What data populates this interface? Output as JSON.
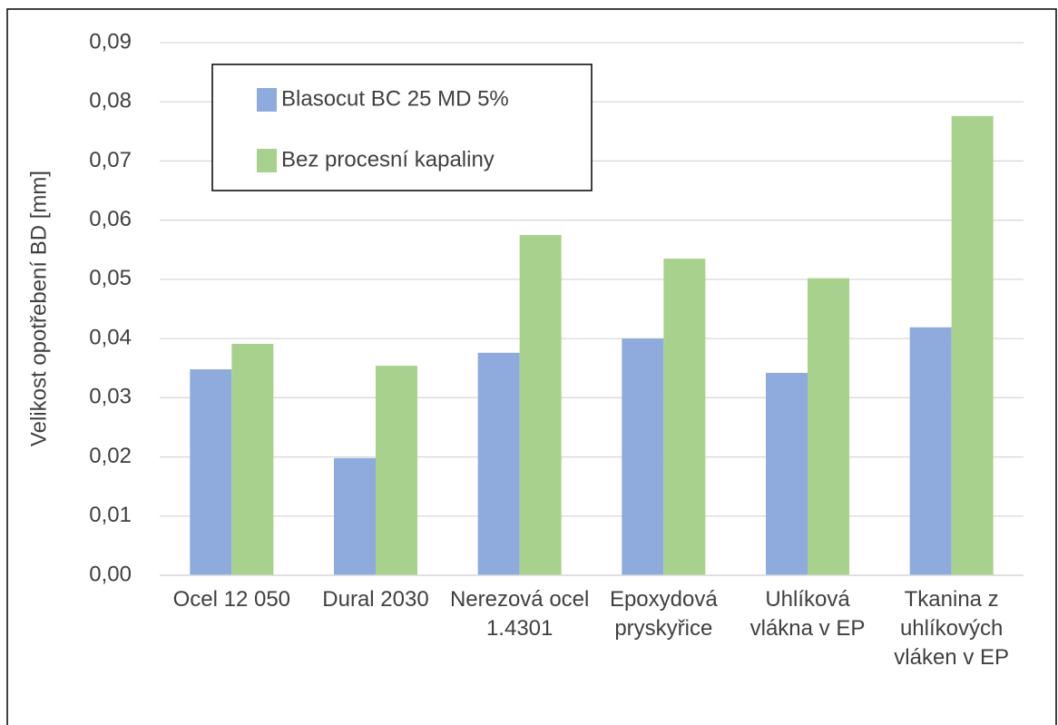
{
  "chart_data": {
    "type": "bar",
    "y_label": "Velikost opotřebení BD [mm]",
    "categories": [
      "Ocel 12 050",
      "Dural 2030",
      "Nerezová ocel 1.4301",
      "Epoxydová pryskyřice",
      "Uhlíková vlákna v EP",
      "Tkanina z uhlíkových vláken v EP"
    ],
    "series": [
      {
        "name": "Blasocut BC 25 MD 5%",
        "color": "#8faadc",
        "values": [
          0.0348,
          0.0198,
          0.0376,
          0.04,
          0.0342,
          0.0419
        ]
      },
      {
        "name": "Bez procesní kapaliny",
        "color": "#a9d18e",
        "values": [
          0.0391,
          0.0354,
          0.0575,
          0.0535,
          0.0502,
          0.0776
        ]
      }
    ],
    "ylim": [
      0,
      0.09
    ],
    "yticks": [
      {
        "value": 0,
        "label": "0,00"
      },
      {
        "value": 0.01,
        "label": "0,01"
      },
      {
        "value": 0.02,
        "label": "0,02"
      },
      {
        "value": 0.03,
        "label": "0,03"
      },
      {
        "value": 0.04,
        "label": "0,04"
      },
      {
        "value": 0.05,
        "label": "0,05"
      },
      {
        "value": 0.06,
        "label": "0,06"
      },
      {
        "value": 0.07,
        "label": "0,07"
      },
      {
        "value": 0.08,
        "label": "0,08"
      },
      {
        "value": 0.09,
        "label": "0,09"
      }
    ],
    "grid": true,
    "legend": "top-left"
  }
}
